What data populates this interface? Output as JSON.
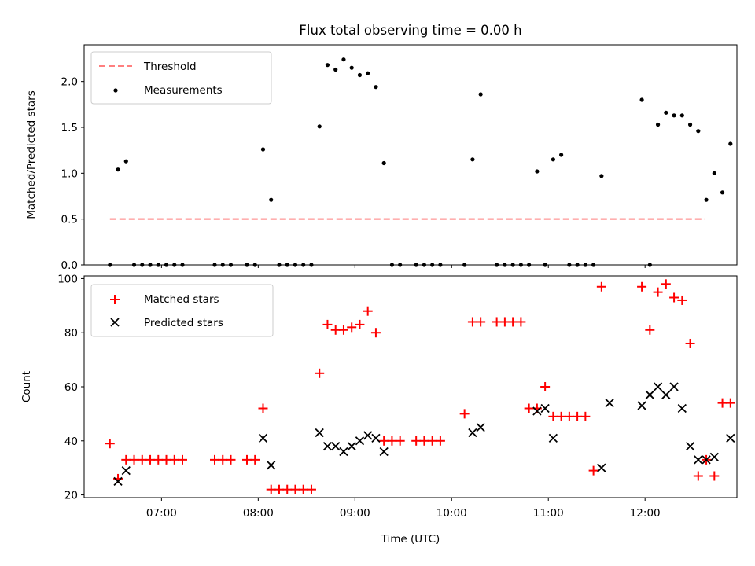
{
  "figure": {
    "title": "Flux total observing time = 0.00 h"
  },
  "chart_data": [
    {
      "type": "scatter",
      "title": "Flux total observing time = 0.00 h",
      "xlabel": "",
      "ylabel": "Matched/Predicted stars",
      "xlim": [
        "06:12",
        "12:57"
      ],
      "ylim": [
        0,
        2.4
      ],
      "xticks": [
        "07:00",
        "08:00",
        "09:00",
        "10:00",
        "11:00",
        "12:00"
      ],
      "xticklabels_shown": false,
      "yticks": [
        "0.0",
        "0.5",
        "1.0",
        "1.5",
        "2.0"
      ],
      "legend": {
        "placement": "top-left",
        "entries": [
          "Threshold",
          "Measurements"
        ]
      },
      "grid": false,
      "series": [
        {
          "name": "Threshold",
          "style": "dashed-line",
          "color": "#ff7f7f",
          "x": [
            "06:28",
            "12:37"
          ],
          "y": [
            0.5,
            0.5
          ]
        },
        {
          "name": "Measurements",
          "style": "dot",
          "color": "#000000",
          "x": [
            "06:28",
            "06:33",
            "06:38",
            "06:43",
            "06:48",
            "06:53",
            "06:58",
            "07:03",
            "07:08",
            "07:13",
            "07:33",
            "07:38",
            "07:43",
            "07:53",
            "07:58",
            "08:03",
            "08:08",
            "08:13",
            "08:18",
            "08:23",
            "08:28",
            "08:33",
            "08:38",
            "08:43",
            "08:48",
            "08:53",
            "08:58",
            "09:03",
            "09:08",
            "09:13",
            "09:18",
            "09:23",
            "09:28",
            "09:38",
            "09:43",
            "09:48",
            "09:53",
            "10:08",
            "10:13",
            "10:18",
            "10:28",
            "10:33",
            "10:38",
            "10:43",
            "10:48",
            "10:53",
            "10:58",
            "11:03",
            "11:08",
            "11:13",
            "11:18",
            "11:23",
            "11:28",
            "11:33",
            "11:58",
            "12:03",
            "12:08",
            "12:13",
            "12:18",
            "12:23",
            "12:28",
            "12:33",
            "12:38",
            "12:43",
            "12:48",
            "12:53"
          ],
          "y": [
            0,
            1.04,
            1.13,
            0,
            0,
            0,
            0,
            0,
            0,
            0,
            0,
            0,
            0,
            0,
            0,
            1.26,
            0.71,
            0,
            0,
            0,
            0,
            0,
            1.51,
            2.18,
            2.13,
            2.24,
            2.15,
            2.07,
            2.09,
            1.94,
            1.11,
            0,
            0,
            0,
            0,
            0,
            0,
            0,
            1.15,
            1.86,
            0,
            0,
            0,
            0,
            0,
            1.02,
            0,
            1.15,
            1.2,
            0,
            0,
            0,
            0,
            0.97,
            1.8,
            0,
            1.53,
            1.66,
            1.63,
            1.63,
            1.53,
            1.46,
            0.71,
            1.0,
            0.79,
            1.32
          ]
        }
      ]
    },
    {
      "type": "scatter",
      "title": "",
      "xlabel": "Time (UTC)",
      "ylabel": "Count",
      "xlim": [
        "06:12",
        "12:57"
      ],
      "ylim": [
        19,
        101
      ],
      "xticks": [
        "07:00",
        "08:00",
        "09:00",
        "10:00",
        "11:00",
        "12:00"
      ],
      "yticks": [
        "20",
        "40",
        "60",
        "80",
        "100"
      ],
      "legend": {
        "placement": "top-left",
        "entries": [
          "Matched stars",
          "Predicted stars"
        ]
      },
      "grid": false,
      "series": [
        {
          "name": "Matched stars",
          "marker": "plus",
          "color": "#ff0000",
          "x": [
            "06:28",
            "06:33",
            "06:38",
            "06:43",
            "06:48",
            "06:53",
            "06:58",
            "07:03",
            "07:08",
            "07:13",
            "07:33",
            "07:38",
            "07:43",
            "07:53",
            "07:58",
            "08:03",
            "08:08",
            "08:13",
            "08:18",
            "08:23",
            "08:28",
            "08:33",
            "08:38",
            "08:43",
            "08:48",
            "08:53",
            "08:58",
            "09:03",
            "09:08",
            "09:13",
            "09:18",
            "09:23",
            "09:28",
            "09:38",
            "09:43",
            "09:48",
            "09:53",
            "10:08",
            "10:13",
            "10:18",
            "10:28",
            "10:33",
            "10:38",
            "10:43",
            "10:48",
            "10:53",
            "10:58",
            "11:03",
            "11:08",
            "11:13",
            "11:18",
            "11:23",
            "11:28",
            "11:33",
            "11:58",
            "12:03",
            "12:08",
            "12:13",
            "12:18",
            "12:23",
            "12:28",
            "12:33",
            "12:38",
            "12:43",
            "12:48",
            "12:53"
          ],
          "y": [
            39,
            26,
            33,
            33,
            33,
            33,
            33,
            33,
            33,
            33,
            33,
            33,
            33,
            33,
            33,
            52,
            22,
            22,
            22,
            22,
            22,
            22,
            65,
            83,
            81,
            81,
            82,
            83,
            88,
            80,
            40,
            40,
            40,
            40,
            40,
            40,
            40,
            50,
            84,
            84,
            84,
            84,
            84,
            84,
            52,
            52,
            60,
            49,
            49,
            49,
            49,
            49,
            29,
            97,
            97,
            81,
            95,
            98,
            93,
            92,
            76,
            27,
            33,
            27,
            54,
            54
          ]
        },
        {
          "name": "Predicted stars",
          "marker": "x",
          "color": "#000000",
          "x": [
            "06:33",
            "06:38",
            "08:03",
            "08:08",
            "08:38",
            "08:43",
            "08:48",
            "08:53",
            "08:58",
            "09:03",
            "09:08",
            "09:13",
            "09:18",
            "10:13",
            "10:18",
            "10:53",
            "10:58",
            "11:03",
            "11:33",
            "11:38",
            "11:58",
            "12:03",
            "12:08",
            "12:13",
            "12:18",
            "12:23",
            "12:28",
            "12:33",
            "12:38",
            "12:43",
            "12:53"
          ],
          "y": [
            25,
            29,
            41,
            31,
            43,
            38,
            38,
            36,
            38,
            40,
            42,
            41,
            36,
            43,
            45,
            51,
            52,
            41,
            30,
            54,
            53,
            57,
            60,
            57,
            60,
            52,
            38,
            33,
            33,
            34,
            41
          ]
        }
      ]
    }
  ]
}
